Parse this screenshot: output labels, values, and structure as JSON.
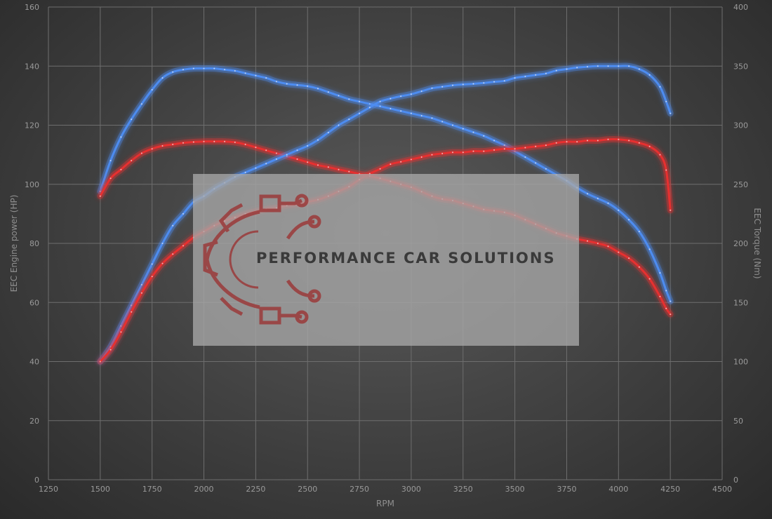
{
  "chart_data": {
    "type": "line",
    "title": "",
    "xlabel": "RPM",
    "ylabel": "EEC Engine power (HP)",
    "y2label": "EEC Torque (Nm)",
    "xlim": [
      1250,
      4500
    ],
    "ylim": [
      0,
      160
    ],
    "y2lim": [
      0,
      400
    ],
    "xticks": [
      1250,
      1500,
      1750,
      2000,
      2250,
      2500,
      2750,
      3000,
      3250,
      3500,
      3750,
      4000,
      4250,
      4500
    ],
    "yticks": [
      0,
      20,
      40,
      60,
      80,
      100,
      120,
      140,
      160
    ],
    "y2ticks": [
      0,
      50,
      100,
      150,
      200,
      250,
      300,
      350,
      400
    ],
    "grid": true,
    "legend": "none",
    "series": [
      {
        "color": "#4d8cf0",
        "axis": "right",
        "x": [
          1500,
          1550,
          1600,
          1650,
          1700,
          1750,
          1800,
          1850,
          1900,
          1950,
          2000,
          2050,
          2100,
          2150,
          2200,
          2250,
          2300,
          2350,
          2400,
          2450,
          2500,
          2550,
          2600,
          2650,
          2700,
          2750,
          2800,
          2850,
          2900,
          2950,
          3000,
          3050,
          3100,
          3150,
          3200,
          3250,
          3300,
          3350,
          3400,
          3450,
          3500,
          3550,
          3600,
          3650,
          3700,
          3750,
          3800,
          3850,
          3900,
          3950,
          4000,
          4050,
          4100,
          4150,
          4200,
          4230,
          4250
        ],
        "y": [
          244,
          270,
          290,
          305,
          318,
          330,
          340,
          345,
          347,
          348,
          348,
          348,
          347,
          346,
          344,
          342,
          340,
          337,
          335,
          334,
          333,
          331,
          328,
          325,
          322,
          320,
          318,
          316,
          314,
          312,
          310,
          308,
          306,
          303,
          300,
          297,
          294,
          291,
          287,
          283,
          278,
          273,
          268,
          263,
          258,
          253,
          247,
          242,
          238,
          234,
          228,
          220,
          210,
          195,
          175,
          160,
          151
        ]
      },
      {
        "color": "#e63030",
        "axis": "left",
        "x": [
          1500,
          1550,
          1600,
          1650,
          1700,
          1750,
          1800,
          1850,
          1900,
          1950,
          2000,
          2050,
          2100,
          2150,
          2200,
          2250,
          2300,
          2350,
          2400,
          2450,
          2500,
          2550,
          2600,
          2650,
          2700,
          2750,
          2800,
          2850,
          2900,
          2950,
          3000,
          3050,
          3100,
          3150,
          3200,
          3250,
          3300,
          3350,
          3400,
          3450,
          3500,
          3550,
          3600,
          3650,
          3700,
          3750,
          3800,
          3850,
          3900,
          3950,
          4000,
          4050,
          4100,
          4150,
          4200,
          4230,
          4250
        ],
        "y": [
          96,
          102,
          105,
          108,
          110.5,
          112,
          113,
          113.5,
          114,
          114.3,
          114.5,
          114.5,
          114.5,
          114.2,
          113.5,
          112.5,
          111.5,
          110.5,
          109.5,
          108.5,
          107.5,
          106.5,
          105.8,
          105,
          104.3,
          103.5,
          102.8,
          102,
          101,
          100,
          99,
          97.5,
          96,
          95,
          94.5,
          93.5,
          92.5,
          91.5,
          91,
          90.5,
          89.5,
          88,
          86.5,
          85,
          83.5,
          82.5,
          81.5,
          80.8,
          80,
          79,
          77,
          75,
          72,
          68,
          62,
          58,
          56
        ]
      },
      {
        "color": "#4d8cf0",
        "axis": "left",
        "x": [
          1500,
          1550,
          1600,
          1650,
          1700,
          1750,
          1800,
          1850,
          1900,
          1950,
          2000,
          2050,
          2100,
          2150,
          2200,
          2250,
          2300,
          2350,
          2400,
          2450,
          2500,
          2550,
          2600,
          2650,
          2700,
          2750,
          2800,
          2850,
          2900,
          2950,
          3000,
          3050,
          3100,
          3150,
          3200,
          3250,
          3300,
          3350,
          3400,
          3450,
          3500,
          3550,
          3600,
          3650,
          3700,
          3750,
          3800,
          3850,
          3900,
          3950,
          4000,
          4050,
          4100,
          4150,
          4200,
          4230,
          4250
        ],
        "y": [
          40,
          45,
          52,
          59,
          66,
          73,
          80,
          86,
          90,
          94,
          96,
          98.5,
          100.5,
          102.5,
          104,
          105.5,
          107,
          108.5,
          110,
          111.5,
          113,
          115,
          117.5,
          120,
          122,
          124,
          126,
          128,
          129,
          129.8,
          130.5,
          131.5,
          132.5,
          133,
          133.5,
          133.8,
          134,
          134.3,
          134.7,
          135,
          136,
          136.5,
          137,
          137.5,
          138.5,
          139,
          139.5,
          139.8,
          140,
          140,
          140,
          140,
          139,
          137,
          133,
          128,
          124
        ]
      },
      {
        "color": "#e63030",
        "axis": "right",
        "x": [
          1500,
          1550,
          1600,
          1650,
          1700,
          1750,
          1800,
          1850,
          1900,
          1950,
          2000,
          2050,
          2100,
          2150,
          2200,
          2250,
          2300,
          2350,
          2400,
          2450,
          2500,
          2550,
          2600,
          2650,
          2700,
          2750,
          2800,
          2850,
          2900,
          2950,
          3000,
          3050,
          3100,
          3150,
          3200,
          3250,
          3300,
          3350,
          3400,
          3450,
          3500,
          3550,
          3600,
          3650,
          3700,
          3750,
          3800,
          3850,
          3900,
          3950,
          4000,
          4050,
          4100,
          4150,
          4200,
          4230,
          4250
        ],
        "y": [
          100,
          110,
          125,
          142,
          158,
          172,
          183,
          191,
          198,
          205,
          210,
          215,
          219,
          222,
          225,
          227,
          229,
          230,
          232,
          233,
          235,
          237,
          240,
          244,
          248,
          254,
          259,
          263,
          267,
          269,
          271,
          273,
          275,
          276,
          277,
          277,
          278,
          278,
          279,
          280,
          280,
          281,
          282,
          283,
          285,
          286,
          286,
          287,
          287,
          288,
          288,
          287,
          285,
          282,
          275,
          262,
          228
        ]
      }
    ]
  },
  "watermark": {
    "text": "PERFORMANCE CAR SOLUTIONS",
    "icon": "gear-circuit-icon",
    "text_color": "#3a3a3a",
    "icon_color": "#9b3a3a",
    "panel_color": "#a8a8a8"
  }
}
